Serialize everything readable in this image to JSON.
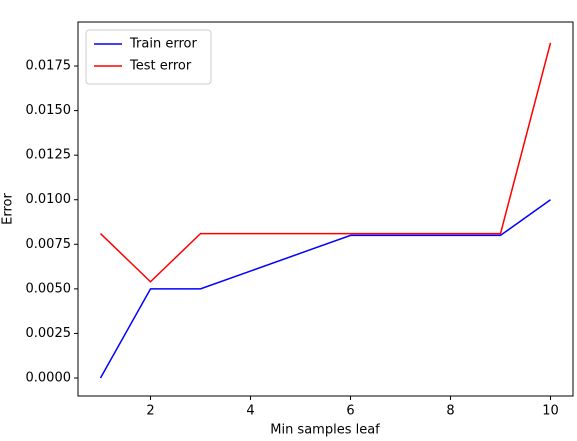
{
  "chart_data": {
    "type": "line",
    "xlabel": "Min samples leaf",
    "ylabel": "Error",
    "x": [
      1,
      2,
      3,
      4,
      5,
      6,
      7,
      8,
      9,
      10
    ],
    "series": [
      {
        "name": "Train error",
        "color": "#0000ff",
        "values": [
          0,
          0.005,
          0.005,
          0.006,
          0.007,
          0.008,
          0.008,
          0.008,
          0.008,
          0.01
        ]
      },
      {
        "name": "Test error",
        "color": "#ff0000",
        "values": [
          0.0081,
          0.0054,
          0.0081,
          0.0081,
          0.0081,
          0.0081,
          0.0081,
          0.0081,
          0.0081,
          0.0188
        ]
      }
    ],
    "xlim": [
      0.55,
      10.45
    ],
    "xticks": [
      2,
      4,
      6,
      8,
      10
    ],
    "ylim": [
      -0.00101,
      0.01997
    ],
    "yticks": [
      {
        "value": 0,
        "label": "0.0000"
      },
      {
        "value": 0.0025,
        "label": "0.0025"
      },
      {
        "value": 0.005,
        "label": "0.0050"
      },
      {
        "value": 0.0075,
        "label": "0.0075"
      },
      {
        "value": 0.01,
        "label": "0.0100"
      },
      {
        "value": 0.0125,
        "label": "0.0125"
      },
      {
        "value": 0.015,
        "label": "0.0150"
      },
      {
        "value": 0.0175,
        "label": "0.0175"
      }
    ],
    "legend": "upper left",
    "grid": false
  }
}
